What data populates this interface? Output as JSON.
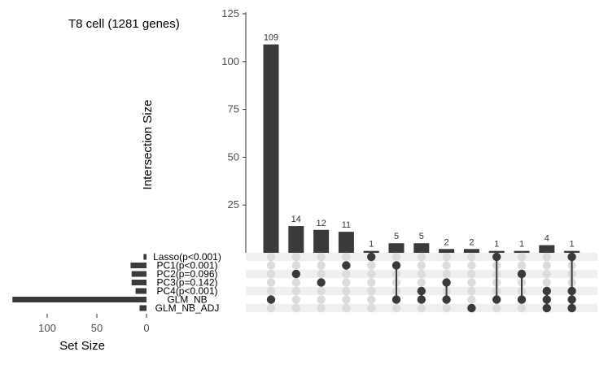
{
  "chart_data": {
    "type": "upset",
    "title": "T8 cell (1281 genes)",
    "intersection_axis": {
      "label": "Intersection Size",
      "ylim": [
        0,
        125
      ],
      "ticks": [
        25,
        50,
        75,
        100,
        125
      ]
    },
    "set_size_axis": {
      "label": "Set Size",
      "xlim": [
        0,
        140
      ],
      "ticks": [
        100,
        50,
        0
      ]
    },
    "sets": [
      {
        "name": "Lasso(p<0.001)",
        "size": 3
      },
      {
        "name": "PC1(p<0.001)",
        "size": 16
      },
      {
        "name": "PC2(p=0.096)",
        "size": 15
      },
      {
        "name": "PC3(p=0.142)",
        "size": 15
      },
      {
        "name": "PC4(p<0.001)",
        "size": 11
      },
      {
        "name": "GLM_NB",
        "size": 135
      },
      {
        "name": "GLM_NB_ADJ",
        "size": 7
      }
    ],
    "intersections": [
      {
        "value": 109,
        "sets": [
          "GLM_NB"
        ]
      },
      {
        "value": 14,
        "sets": [
          "PC2(p=0.096)"
        ]
      },
      {
        "value": 12,
        "sets": [
          "PC3(p=0.142)"
        ]
      },
      {
        "value": 11,
        "sets": [
          "PC1(p<0.001)"
        ]
      },
      {
        "value": 1,
        "sets": [
          "Lasso(p<0.001)"
        ]
      },
      {
        "value": 5,
        "sets": [
          "PC1(p<0.001)",
          "GLM_NB"
        ]
      },
      {
        "value": 5,
        "sets": [
          "PC4(p<0.001)",
          "GLM_NB"
        ]
      },
      {
        "value": 2,
        "sets": [
          "PC3(p=0.142)",
          "GLM_NB"
        ]
      },
      {
        "value": 2,
        "sets": [
          "GLM_NB_ADJ"
        ]
      },
      {
        "value": 1,
        "sets": [
          "Lasso(p<0.001)",
          "GLM_NB"
        ]
      },
      {
        "value": 1,
        "sets": [
          "PC2(p=0.096)",
          "GLM_NB"
        ]
      },
      {
        "value": 4,
        "sets": [
          "PC4(p<0.001)",
          "GLM_NB",
          "GLM_NB_ADJ"
        ]
      },
      {
        "value": 1,
        "sets": [
          "Lasso(p<0.001)",
          "PC4(p<0.001)",
          "GLM_NB",
          "GLM_NB_ADJ"
        ]
      }
    ],
    "colors": {
      "bar": "#3a3a3a",
      "dot_active": "#3a3a3a",
      "dot_inactive": "#dcdcdc",
      "stripe_dark": "#f0f0f0",
      "stripe_light": "#ffffff",
      "axis": "#333333"
    }
  }
}
